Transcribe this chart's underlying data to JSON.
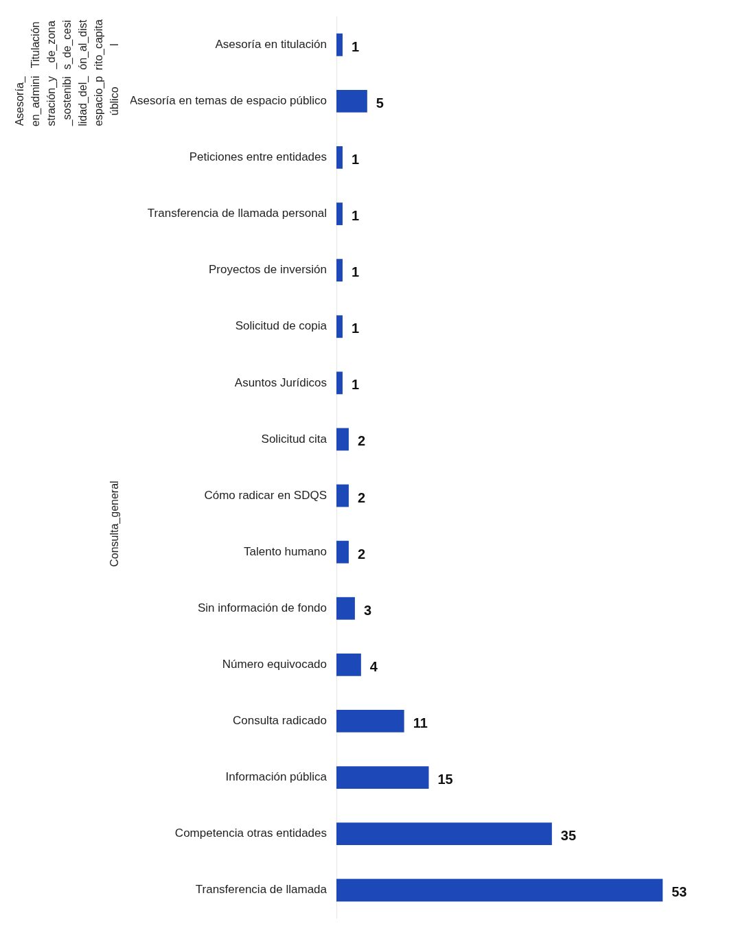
{
  "chart_data": {
    "type": "bar",
    "orientation": "horizontal",
    "categories": [
      "Asesoría en titulación",
      "Asesoría en temas de espacio público",
      "Peticiones entre entidades",
      "Transferencia de llamada personal",
      "Proyectos de inversión",
      "Solicitud de copia",
      "Asuntos Jurídicos",
      "Solicitud cita",
      "Cómo radicar en SDQS",
      "Talento humano",
      "Sin información de fondo",
      "Número equivocado",
      "Consulta radicado",
      "Información pública",
      "Competencia otras entidades",
      "Transferencia de llamada"
    ],
    "values": [
      1,
      5,
      1,
      1,
      1,
      1,
      1,
      2,
      2,
      2,
      3,
      4,
      11,
      15,
      35,
      53
    ],
    "color": "#1c48b8",
    "data_labels": true,
    "annotations": [
      "Titulación_de_zonas_de_cesión_al_distrito_capital",
      "Asesoría_en_administración_y_sostenibilidad_del_espacio_público",
      "Consulta_general"
    ]
  }
}
